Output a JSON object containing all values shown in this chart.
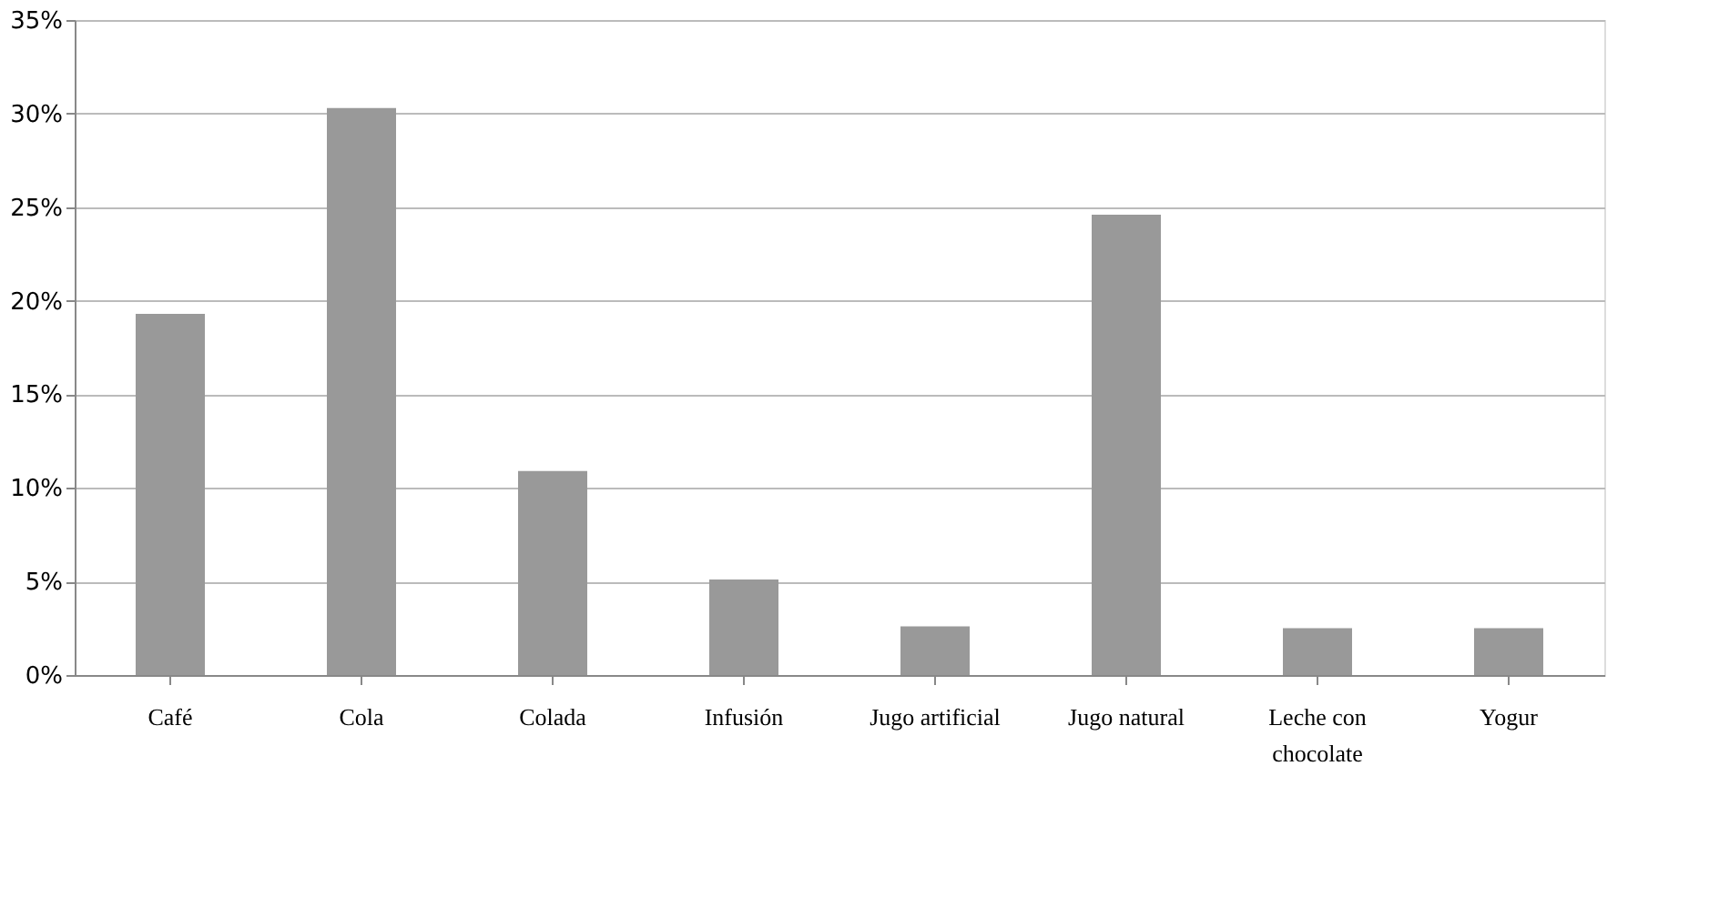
{
  "chart_data": {
    "type": "bar",
    "categories": [
      "Café",
      "Cola",
      "Colada",
      "Infusión",
      "Jugo artificial",
      "Jugo natural",
      "Leche con chocolate",
      "Yogur"
    ],
    "values": [
      19.3,
      30.3,
      10.9,
      5.1,
      2.6,
      24.6,
      2.5,
      2.5
    ],
    "color": "#999999",
    "ylim": [
      0,
      35
    ],
    "yticks": [
      {
        "value": 0,
        "label": "0%"
      },
      {
        "value": 5,
        "label": "5%"
      },
      {
        "value": 10,
        "label": "10%"
      },
      {
        "value": 15,
        "label": "15%"
      },
      {
        "value": 20,
        "label": "20%"
      },
      {
        "value": 25,
        "label": "25%"
      },
      {
        "value": 30,
        "label": "30%"
      },
      {
        "value": 35,
        "label": "35%"
      }
    ],
    "grid": "y"
  }
}
